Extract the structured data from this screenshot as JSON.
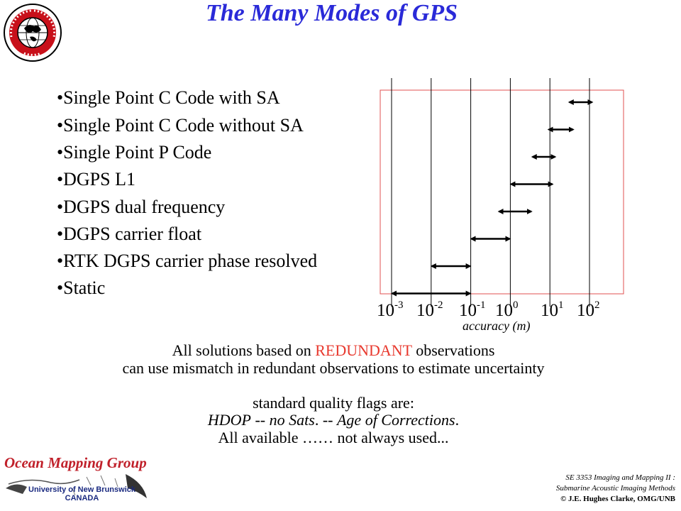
{
  "slide": {
    "title": "The Many Modes of GPS",
    "bullets": [
      "•Single Point C Code with SA",
      "•Single Point C Code without SA",
      "•Single Point P Code",
      "•DGPS L1",
      "•DGPS dual frequency",
      "•DGPS  carrier float",
      "•RTK DGPS carrier phase resolved",
      "•Static"
    ],
    "line1_prefix": "All solutions based on ",
    "line1_red": "REDUNDANT",
    "line1_suffix": " observations",
    "line2": "can use mismatch in redundant observations to estimate uncertainty",
    "flags_heading": "standard quality flags are:",
    "flags_hdop": "HDOP",
    "flags_sep1": " -- ",
    "flags_sats": "no Sats",
    "flags_sep2": ". -- ",
    "flags_age": "Age of Corrections",
    "flags_end": ".",
    "flags_available": "All available …… not always used..."
  },
  "logos": {
    "top_seal_text": "GEODESY AND GEOMATICS ENGINEERING UNB",
    "omg_name": "Ocean Mapping Group",
    "unb_line1": "University of New Brunswick",
    "unb_line2": "CANADA"
  },
  "footer": {
    "line1": "SE 3353 Imaging and Mapping II :",
    "line2": "Submarine Acoustic Imaging Methods",
    "line3": "© J.E. Hughes Clarke, OMG/UNB"
  },
  "chart_data": {
    "type": "range",
    "xscale": "log",
    "xlabel": "accuracy (m)",
    "xticks": [
      {
        "base": "10",
        "exp": "-3",
        "value": 0.001
      },
      {
        "base": "10",
        "exp": "-2",
        "value": 0.01
      },
      {
        "base": "10",
        "exp": "-1",
        "value": 0.1
      },
      {
        "base": "10",
        "exp": "0",
        "value": 1
      },
      {
        "base": "10",
        "exp": "1",
        "value": 10
      },
      {
        "base": "10",
        "exp": "2",
        "value": 100
      }
    ],
    "ranges": [
      {
        "mode": "Single Point C Code with SA",
        "low": 30,
        "high": 120
      },
      {
        "mode": "Single Point C Code without SA",
        "low": 9,
        "high": 40
      },
      {
        "mode": "Single Point P Code",
        "low": 3.5,
        "high": 14
      },
      {
        "mode": "DGPS L1",
        "low": 1,
        "high": 12
      },
      {
        "mode": "DGPS dual frequency",
        "low": 0.5,
        "high": 3.5
      },
      {
        "mode": "DGPS  carrier float",
        "low": 0.1,
        "high": 1
      },
      {
        "mode": "RTK DGPS carrier phase resolved",
        "low": 0.01,
        "high": 0.1
      },
      {
        "mode": "Static",
        "low": 0.001,
        "high": 0.1
      }
    ],
    "colors": {
      "frame": "#e05050",
      "lines": "#000000",
      "arrows": "#000000"
    }
  }
}
